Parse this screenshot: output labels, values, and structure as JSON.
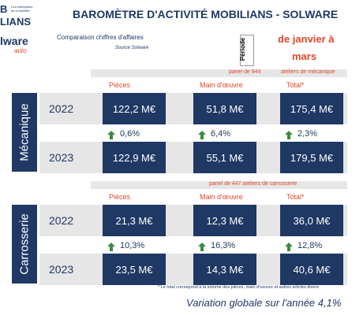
{
  "header": {
    "logo_letter": "B",
    "logo_name": "LIANS",
    "logo_tagline": "Les entreprises de la mobilité",
    "logo2": "lware",
    "logo2_sub": "auto",
    "title": "BAROMÈTRE D'ACTIVITÉ MOBILIANS - SOLWARE",
    "subtitle": "Comparaison chiffres d'affaires",
    "source": "Source Solware",
    "period_label": "Période",
    "period": [
      "de janvier à",
      "mars"
    ]
  },
  "sections": [
    {
      "label": "Mécanique",
      "panel": "panel de 944",
      "panel_detail": "ateliers de mécanique",
      "columns": [
        "Pièces",
        "Main d'œuvre",
        "Total*"
      ],
      "rows": [
        {
          "year": "2022",
          "values": [
            "122,2 M€",
            "51,8 M€",
            "175,4 M€"
          ]
        },
        {
          "year": "2023",
          "values": [
            "122,9 M€",
            "55,1 M€",
            "179,5 M€"
          ]
        }
      ],
      "changes": [
        "0,6%",
        "6,4%",
        "2,3%"
      ]
    },
    {
      "label": "Carrosserie",
      "panel": "panel de 447 ateliers de carrosserie",
      "columns": [
        "Pièces",
        "Main d'œuvre",
        "Total*"
      ],
      "rows": [
        {
          "year": "2022",
          "values": [
            "21,3 M€",
            "12,3 M€",
            "36,0 M€"
          ]
        },
        {
          "year": "2023",
          "values": [
            "23,5 M€",
            "14,3 M€",
            "40,6 M€"
          ]
        }
      ],
      "changes": [
        "10,3%",
        "16,3%",
        "12,8%"
      ]
    }
  ],
  "footnote": "* Le total correspond à la somme des pièces, main d'oeuvre et autres articles divers",
  "summary": "Variation globale sur l'année 4,1%"
}
